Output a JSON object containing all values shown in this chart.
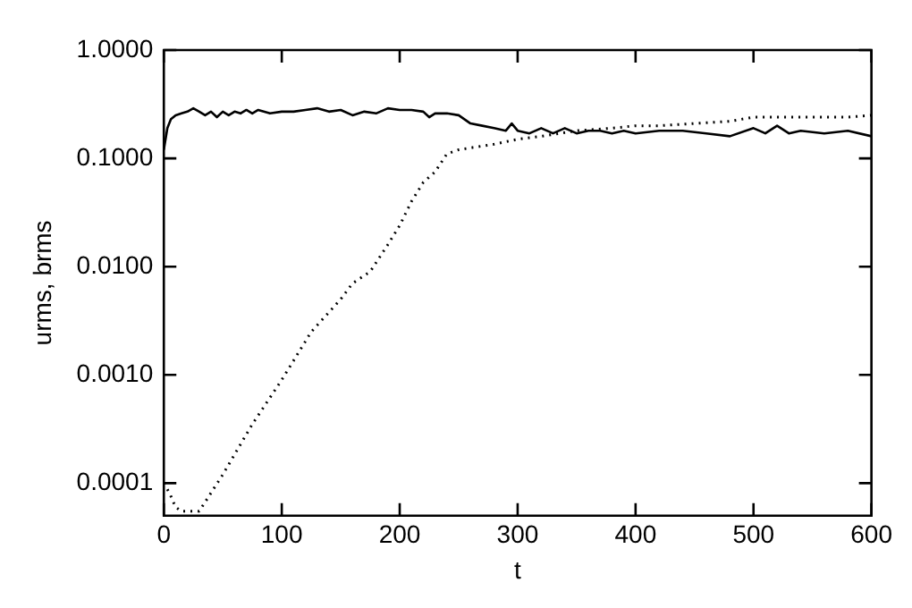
{
  "chart_data": {
    "type": "line",
    "xlabel": "t",
    "ylabel": "urms, brms",
    "log": "y",
    "grid": false,
    "legend": false,
    "marker": "none",
    "xlim": [
      0,
      600
    ],
    "xticks": [
      0,
      100,
      200,
      300,
      400,
      500,
      600
    ],
    "ylim": [
      5e-05,
      1
    ],
    "yticks": [
      {
        "value": 0.0001,
        "label": "0.0001"
      },
      {
        "value": 0.001,
        "label": "0.0010"
      },
      {
        "value": 0.01,
        "label": "0.0100"
      },
      {
        "value": 0.1,
        "label": "0.1000"
      },
      {
        "value": 1,
        "label": "1.0000"
      }
    ],
    "series": [
      {
        "color": "#000000",
        "line_style": "solid",
        "x": [
          0,
          3,
          6,
          10,
          15,
          20,
          25,
          30,
          35,
          40,
          45,
          50,
          55,
          60,
          65,
          70,
          75,
          80,
          90,
          100,
          110,
          120,
          130,
          140,
          150,
          160,
          170,
          180,
          190,
          200,
          210,
          220,
          225,
          230,
          240,
          250,
          260,
          270,
          280,
          290,
          295,
          300,
          310,
          320,
          330,
          340,
          350,
          360,
          370,
          380,
          390,
          400,
          420,
          440,
          460,
          480,
          500,
          510,
          520,
          530,
          540,
          560,
          580,
          600
        ],
        "values": [
          0.12,
          0.19,
          0.23,
          0.25,
          0.26,
          0.27,
          0.29,
          0.27,
          0.25,
          0.27,
          0.24,
          0.27,
          0.25,
          0.27,
          0.26,
          0.28,
          0.26,
          0.28,
          0.26,
          0.27,
          0.27,
          0.28,
          0.29,
          0.27,
          0.28,
          0.25,
          0.27,
          0.26,
          0.29,
          0.28,
          0.28,
          0.27,
          0.24,
          0.26,
          0.26,
          0.25,
          0.21,
          0.2,
          0.19,
          0.18,
          0.21,
          0.18,
          0.17,
          0.19,
          0.17,
          0.19,
          0.17,
          0.18,
          0.18,
          0.17,
          0.18,
          0.17,
          0.18,
          0.18,
          0.17,
          0.16,
          0.19,
          0.17,
          0.2,
          0.17,
          0.18,
          0.17,
          0.18,
          0.16
        ]
      },
      {
        "color": "#000000",
        "line_style": "dotted",
        "x": [
          0,
          5,
          10,
          15,
          30,
          50,
          75,
          100,
          125,
          150,
          160,
          175,
          190,
          200,
          210,
          220,
          230,
          240,
          250,
          260,
          270,
          280,
          300,
          320,
          350,
          380,
          400,
          420,
          450,
          480,
          500,
          520,
          550,
          580,
          600
        ],
        "values": [
          0.0001,
          8e-05,
          6e-05,
          5.5e-05,
          5.5e-05,
          0.00012,
          0.00035,
          0.0009,
          0.0025,
          0.005,
          0.007,
          0.009,
          0.016,
          0.024,
          0.04,
          0.06,
          0.075,
          0.11,
          0.12,
          0.125,
          0.13,
          0.135,
          0.15,
          0.16,
          0.18,
          0.19,
          0.2,
          0.2,
          0.21,
          0.22,
          0.24,
          0.24,
          0.24,
          0.24,
          0.25
        ]
      }
    ]
  }
}
